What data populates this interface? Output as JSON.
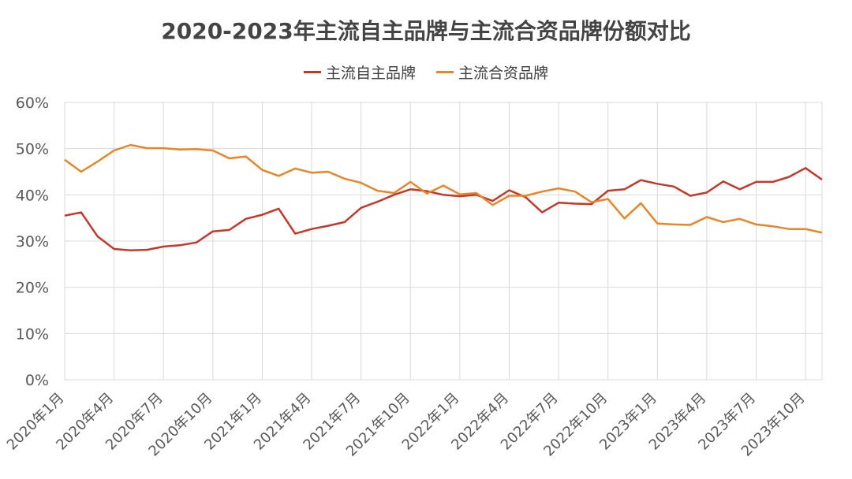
{
  "chart_data": {
    "type": "line",
    "title": "2020-2023年主流自主品牌与主流合资品牌份额对比",
    "xlabel": "",
    "ylabel": "",
    "ylim": [
      0,
      60
    ],
    "yticks": [
      "0%",
      "10%",
      "20%",
      "30%",
      "40%",
      "50%",
      "60%"
    ],
    "ytick_values": [
      0,
      10,
      20,
      30,
      40,
      50,
      60
    ],
    "grid": true,
    "legend_position": "top",
    "x_tick_labels": [
      "2020年1月",
      "2020年4月",
      "2020年7月",
      "2020年10月",
      "2021年1月",
      "2021年4月",
      "2021年7月",
      "2021年10月",
      "2022年1月",
      "2022年4月",
      "2022年7月",
      "2022年10月",
      "2023年1月",
      "2023年4月",
      "2023年7月",
      "2023年10月"
    ],
    "x": [
      "2020年1月",
      "2020年2月",
      "2020年3月",
      "2020年4月",
      "2020年5月",
      "2020年6月",
      "2020年7月",
      "2020年8月",
      "2020年9月",
      "2020年10月",
      "2020年11月",
      "2020年12月",
      "2021年1月",
      "2021年2月",
      "2021年3月",
      "2021年4月",
      "2021年5月",
      "2021年6月",
      "2021年7月",
      "2021年8月",
      "2021年9月",
      "2021年10月",
      "2021年11月",
      "2021年12月",
      "2022年1月",
      "2022年2月",
      "2022年3月",
      "2022年4月",
      "2022年5月",
      "2022年6月",
      "2022年7月",
      "2022年8月",
      "2022年9月",
      "2022年10月",
      "2022年11月",
      "2022年12月",
      "2023年1月",
      "2023年2月",
      "2023年3月",
      "2023年4月",
      "2023年5月",
      "2023年6月",
      "2023年7月",
      "2023年8月",
      "2023年9月",
      "2023年10月",
      "2023年11月"
    ],
    "series": [
      {
        "name": "主流自主品牌",
        "color": "#c0392b",
        "values": [
          35.5,
          36.2,
          31.0,
          28.3,
          28.0,
          28.1,
          28.8,
          29.1,
          29.7,
          32.1,
          32.4,
          34.8,
          35.7,
          37.0,
          31.6,
          32.6,
          33.3,
          34.1,
          37.2,
          38.5,
          40.0,
          41.2,
          40.8,
          40.0,
          39.7,
          40.0,
          38.7,
          41.0,
          39.5,
          36.2,
          38.3,
          38.1,
          38.0,
          40.9,
          41.2,
          43.2,
          42.4,
          41.8,
          39.8,
          40.5,
          42.9,
          41.2,
          42.8,
          42.8,
          43.9,
          45.8,
          43.3
        ]
      },
      {
        "name": "主流合资品牌",
        "color": "#e6862a",
        "values": [
          47.6,
          45.0,
          47.2,
          49.6,
          50.8,
          50.1,
          50.1,
          49.8,
          49.9,
          49.6,
          47.9,
          48.3,
          45.4,
          44.1,
          45.7,
          44.8,
          45.0,
          43.5,
          42.6,
          40.9,
          40.4,
          42.8,
          40.3,
          42.0,
          40.1,
          40.4,
          37.8,
          39.8,
          39.8,
          40.7,
          41.4,
          40.7,
          38.4,
          39.1,
          34.9,
          38.2,
          33.8,
          33.6,
          33.5,
          35.2,
          34.1,
          34.8,
          33.6,
          33.2,
          32.6,
          32.6,
          31.8
        ]
      }
    ]
  }
}
